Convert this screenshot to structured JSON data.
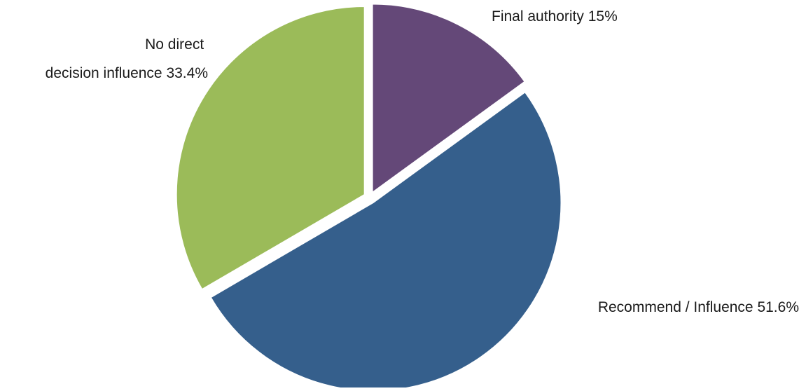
{
  "chart_data": {
    "type": "pie",
    "slices": [
      {
        "label": "Final authority",
        "value": 15,
        "value_text": "15%",
        "color": "#644878"
      },
      {
        "label": "Recommend / Influence",
        "value": 51.6,
        "value_text": "51.6%",
        "color": "#355F8C"
      },
      {
        "label": "No direct decision influence",
        "value": 33.4,
        "value_text": "33.4%",
        "color": "#9BBB59"
      }
    ],
    "start_angle": "12 o'clock",
    "direction": "clockwise",
    "exploded": true,
    "legend": "none",
    "labels": [
      {
        "lines": [
          "Final authority 15%"
        ]
      },
      {
        "lines": [
          "Recommend / Influence 51.6%"
        ]
      },
      {
        "lines": [
          "No direct",
          "decision influence 33.4%"
        ]
      }
    ]
  }
}
